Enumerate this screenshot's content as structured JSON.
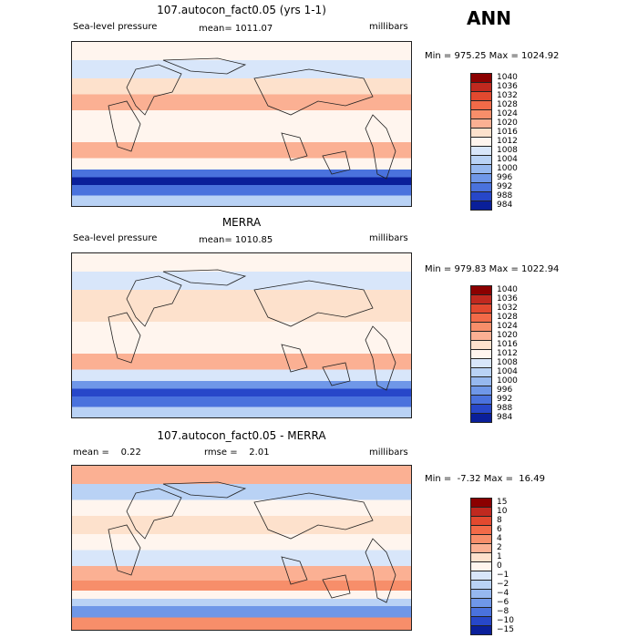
{
  "season": "ANN",
  "chart_data": [
    {
      "type": "heatmap",
      "title": "107.autocon_fact0.05 (yrs 1-1)",
      "left_label": "Sea-level pressure",
      "center_label": "mean= 1011.07",
      "right_label": "millibars",
      "minmax": "Min = 975.25 Max = 1024.92",
      "levels": [
        "1040",
        "1036",
        "1032",
        "1028",
        "1024",
        "1020",
        "1016",
        "1012",
        "1008",
        "1004",
        "1000",
        "996",
        "992",
        "988",
        "984"
      ],
      "colors": [
        "#8b0000",
        "#c0291f",
        "#e2492f",
        "#f26a48",
        "#f78e6a",
        "#fbb093",
        "#fde1cc",
        "#fff5ee",
        "#d8e6fa",
        "#b9d2f5",
        "#96b8ef",
        "#6f97e8",
        "#4a72dd",
        "#2747c9",
        "#0a1f9a"
      ],
      "bands": [
        {
          "lat": 80,
          "value": 1012
        },
        {
          "lat": 60,
          "value": 1008
        },
        {
          "lat": 40,
          "value": 1016
        },
        {
          "lat": 25,
          "value": 1018
        },
        {
          "lat": 5,
          "value": 1010
        },
        {
          "lat": -10,
          "value": 1012
        },
        {
          "lat": -30,
          "value": 1020
        },
        {
          "lat": -45,
          "value": 1010
        },
        {
          "lat": -55,
          "value": 992
        },
        {
          "lat": -62,
          "value": 984
        },
        {
          "lat": -72,
          "value": 990
        },
        {
          "lat": -85,
          "value": 1004
        }
      ]
    },
    {
      "type": "heatmap",
      "title": "MERRA",
      "left_label": "Sea-level pressure",
      "center_label": "mean= 1010.85",
      "right_label": "millibars",
      "minmax": "Min = 979.83 Max = 1022.94",
      "levels": [
        "1040",
        "1036",
        "1032",
        "1028",
        "1024",
        "1020",
        "1016",
        "1012",
        "1008",
        "1004",
        "1000",
        "996",
        "992",
        "988",
        "984"
      ],
      "colors": [
        "#8b0000",
        "#c0291f",
        "#e2492f",
        "#f26a48",
        "#f78e6a",
        "#fbb093",
        "#fde1cc",
        "#fff5ee",
        "#d8e6fa",
        "#b9d2f5",
        "#96b8ef",
        "#6f97e8",
        "#4a72dd",
        "#2747c9",
        "#0a1f9a"
      ],
      "bands": [
        {
          "lat": 80,
          "value": 1012
        },
        {
          "lat": 60,
          "value": 1008
        },
        {
          "lat": 40,
          "value": 1016
        },
        {
          "lat": 25,
          "value": 1016
        },
        {
          "lat": 5,
          "value": 1010
        },
        {
          "lat": -10,
          "value": 1012
        },
        {
          "lat": -30,
          "value": 1018
        },
        {
          "lat": -45,
          "value": 1008
        },
        {
          "lat": -55,
          "value": 994
        },
        {
          "lat": -62,
          "value": 986
        },
        {
          "lat": -72,
          "value": 990
        },
        {
          "lat": -85,
          "value": 1004
        }
      ]
    },
    {
      "type": "heatmap",
      "title": "107.autocon_fact0.05 - MERRA",
      "left_label": "mean =    0.22",
      "center_label": "rmse =    2.01",
      "right_label": "millibars",
      "minmax": "Min =  -7.32 Max =  16.49",
      "levels": [
        "15",
        "10",
        "8",
        "6",
        "4",
        "2",
        "1",
        "0",
        "−1",
        "−2",
        "−4",
        "−6",
        "−8",
        "−10",
        "−15"
      ],
      "colors": [
        "#8b0000",
        "#c0291f",
        "#e2492f",
        "#f26a48",
        "#f78e6a",
        "#fbb093",
        "#fde1cc",
        "#fff5ee",
        "#d8e6fa",
        "#b9d2f5",
        "#96b8ef",
        "#6f97e8",
        "#4a72dd",
        "#2747c9",
        "#0a1f9a"
      ],
      "bands": [
        {
          "lat": 80,
          "value": 2
        },
        {
          "lat": 60,
          "value": -2
        },
        {
          "lat": 45,
          "value": 0
        },
        {
          "lat": 25,
          "value": 1
        },
        {
          "lat": 5,
          "value": 0
        },
        {
          "lat": -10,
          "value": -1
        },
        {
          "lat": -30,
          "value": 2
        },
        {
          "lat": -42,
          "value": 4
        },
        {
          "lat": -52,
          "value": 0
        },
        {
          "lat": -60,
          "value": -2
        },
        {
          "lat": -68,
          "value": -6
        },
        {
          "lat": -85,
          "value": 4
        }
      ]
    }
  ]
}
